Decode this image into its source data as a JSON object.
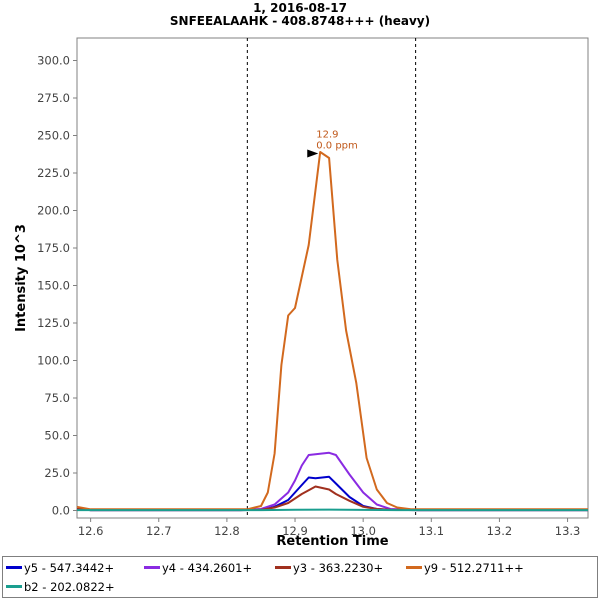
{
  "chart_data": {
    "type": "line",
    "title": "1, 2016-08-17",
    "subtitle": "SNFEEALAAHK - 408.8748+++ (heavy)",
    "xlabel": "Retention Time",
    "ylabel": "Intensity 10^3",
    "xlim": [
      12.58,
      13.33
    ],
    "ylim": [
      -5,
      315
    ],
    "xticks": [
      "12.6",
      "12.7",
      "12.8",
      "12.9",
      "13.0",
      "13.1",
      "13.2",
      "13.3"
    ],
    "xtick_values": [
      12.6,
      12.7,
      12.8,
      12.9,
      13.0,
      13.1,
      13.2,
      13.3
    ],
    "yticks": [
      "0.0",
      "25.0",
      "50.0",
      "75.0",
      "100.0",
      "125.0",
      "150.0",
      "175.0",
      "200.0",
      "225.0",
      "250.0",
      "275.0",
      "300.0"
    ],
    "ytick_values": [
      0,
      25,
      50,
      75,
      100,
      125,
      150,
      175,
      200,
      225,
      250,
      275,
      300
    ],
    "grid": false,
    "legend_position": "bottom",
    "boundaries": [
      12.83,
      13.077
    ],
    "annotation": {
      "line1": "12.9",
      "line2": "0.0 ppm",
      "x": 12.937,
      "y": 238
    },
    "series": [
      {
        "name": "y5 - 547.3442+",
        "color": "#0000cc",
        "x": [
          12.58,
          12.6,
          12.7,
          12.8,
          12.82,
          12.85,
          12.87,
          12.89,
          12.9,
          12.91,
          12.92,
          12.93,
          12.94,
          12.95,
          12.96,
          12.98,
          13.0,
          13.02,
          13.04,
          13.08,
          13.33
        ],
        "y": [
          1.0,
          0.3,
          0.3,
          0.3,
          0.3,
          0.5,
          2.5,
          7.0,
          12.0,
          17.0,
          22.0,
          21.5,
          22.0,
          22.5,
          18.0,
          9.0,
          3.0,
          1.0,
          0.5,
          0.3,
          0.3
        ]
      },
      {
        "name": "y4 - 434.2601+",
        "color": "#8a2be2",
        "x": [
          12.58,
          12.6,
          12.7,
          12.8,
          12.82,
          12.85,
          12.87,
          12.89,
          12.9,
          12.91,
          12.92,
          12.93,
          12.94,
          12.95,
          12.96,
          12.98,
          13.0,
          13.02,
          13.04,
          13.08,
          13.33
        ],
        "y": [
          1.0,
          0.3,
          0.3,
          0.3,
          0.3,
          1.0,
          4.0,
          12.0,
          20.0,
          30.0,
          37.0,
          37.5,
          38.0,
          38.5,
          37.0,
          24.0,
          12.0,
          4.0,
          1.0,
          0.3,
          0.3
        ]
      },
      {
        "name": "y3 - 363.2230+",
        "color": "#a0301e",
        "x": [
          12.58,
          12.6,
          12.7,
          12.8,
          12.82,
          12.85,
          12.87,
          12.89,
          12.9,
          12.91,
          12.92,
          12.93,
          12.94,
          12.95,
          12.96,
          12.98,
          13.0,
          13.02,
          13.04,
          13.08,
          13.33
        ],
        "y": [
          1.0,
          0.3,
          0.3,
          0.3,
          0.3,
          0.5,
          2.0,
          5.0,
          8.0,
          11.0,
          13.5,
          16.0,
          15.0,
          14.0,
          11.0,
          6.5,
          2.5,
          1.0,
          0.5,
          0.3,
          0.3
        ]
      },
      {
        "name": "y9 - 512.2711++",
        "color": "#d2691e",
        "x": [
          12.58,
          12.6,
          12.7,
          12.8,
          12.82,
          12.83,
          12.85,
          12.86,
          12.87,
          12.88,
          12.89,
          12.9,
          12.92,
          12.937,
          12.95,
          12.962,
          12.975,
          12.99,
          13.005,
          13.02,
          13.035,
          13.05,
          13.07,
          13.08,
          13.33
        ],
        "y": [
          2.5,
          0.8,
          0.8,
          0.8,
          0.8,
          0.8,
          3.0,
          12.0,
          38.0,
          97.0,
          130.0,
          135.0,
          177.0,
          239.0,
          235.0,
          167.0,
          120.0,
          85.0,
          35.0,
          14.0,
          5.0,
          2.0,
          0.8,
          0.8,
          0.8
        ]
      },
      {
        "name": "b2 - 202.0822+",
        "color": "#1a9e8f",
        "x": [
          12.58,
          12.6,
          12.7,
          12.8,
          12.85,
          12.9,
          12.95,
          13.0,
          13.05,
          13.08,
          13.33
        ],
        "y": [
          0.3,
          0.3,
          0.3,
          0.3,
          0.3,
          0.5,
          0.6,
          0.4,
          0.3,
          0.3,
          0.3
        ]
      }
    ]
  }
}
